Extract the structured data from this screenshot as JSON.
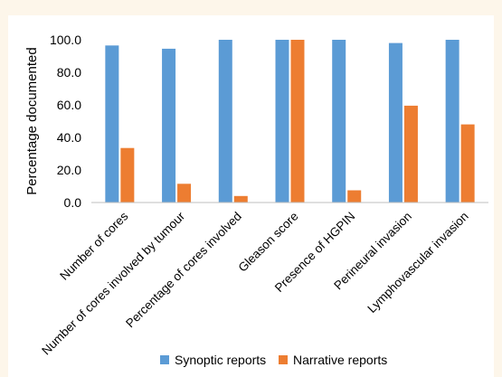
{
  "chart_data": {
    "type": "bar",
    "categories": [
      "Number of cores",
      "Number of cores involved by tumour",
      "Percentage of cores involved",
      "Gleason score",
      "Presence of HGPIN",
      "Perineural invasion",
      "Lymphovascular invasion"
    ],
    "series": [
      {
        "name": "Synoptic reports",
        "color": "#5b9bd5",
        "values": [
          96.5,
          94.5,
          100,
          100,
          100,
          98,
          100
        ]
      },
      {
        "name": "Narrative reports",
        "color": "#ed7d31",
        "values": [
          33.5,
          11.5,
          4,
          100,
          7.5,
          59.5,
          48
        ]
      }
    ],
    "ylabel": "Percentage documented",
    "xlabel": "",
    "ylim": [
      0,
      100
    ],
    "yticks": [
      "0.0",
      "20.0",
      "40.0",
      "60.0",
      "80.0",
      "100.0"
    ],
    "grid": false,
    "legend_position": "bottom"
  }
}
